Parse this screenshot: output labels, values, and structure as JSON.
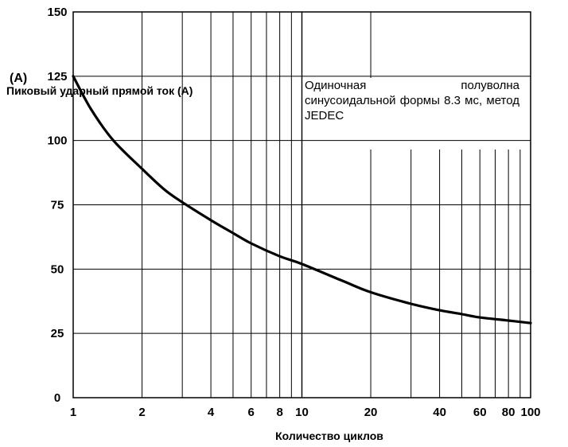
{
  "chart_data": {
    "type": "line",
    "title": "",
    "xlabel": "Количество циклов",
    "ylabel": "Пиковый ударный прямой ток (A)",
    "y_unit": "(A)",
    "x_scale": "log",
    "xlim": [
      1,
      100
    ],
    "ylim": [
      0,
      150
    ],
    "grid": true,
    "x_ticks": [
      {
        "value": 1,
        "label": "1"
      },
      {
        "value": 2,
        "label": "2"
      },
      {
        "value": 4,
        "label": "4"
      },
      {
        "value": 6,
        "label": "6"
      },
      {
        "value": 8,
        "label": "8"
      },
      {
        "value": 10,
        "label": "10"
      },
      {
        "value": 20,
        "label": "20"
      },
      {
        "value": 40,
        "label": "40"
      },
      {
        "value": 60,
        "label": "60"
      },
      {
        "value": 80,
        "label": "80"
      },
      {
        "value": 100,
        "label": "100"
      }
    ],
    "y_ticks": [
      {
        "value": 0,
        "label": "0"
      },
      {
        "value": 25,
        "label": "25"
      },
      {
        "value": 50,
        "label": "50"
      },
      {
        "value": 75,
        "label": "75"
      },
      {
        "value": 100,
        "label": "100"
      },
      {
        "value": 125,
        "label": "125"
      },
      {
        "value": 150,
        "label": "150"
      }
    ],
    "annotation": "Одиночная полуволна синусоидальной формы 8.3 мс, метод JEDEC",
    "series": [
      {
        "color": "#000000",
        "x": [
          1,
          1.2,
          1.5,
          2,
          2.5,
          3,
          4,
          5,
          6,
          8,
          10,
          15,
          20,
          30,
          40,
          50,
          60,
          80,
          100
        ],
        "y": [
          125,
          112,
          100,
          89,
          81,
          76,
          69,
          64,
          60,
          55,
          52,
          45.5,
          41,
          36.5,
          34,
          32.5,
          31.2,
          30,
          29
        ]
      }
    ]
  }
}
